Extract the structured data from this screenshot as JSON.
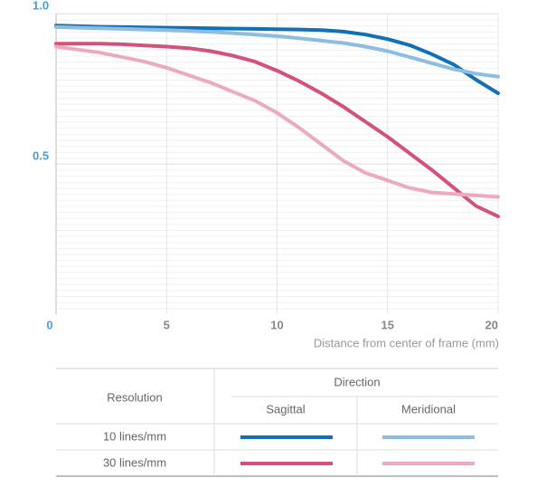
{
  "chart_data": {
    "type": "line",
    "x_label": "Distance from center of frame (mm)",
    "x": [
      0,
      1,
      2,
      3,
      4,
      5,
      6,
      7,
      8,
      9,
      10,
      11,
      12,
      13,
      14,
      15,
      16,
      17,
      18,
      19,
      20
    ],
    "xlim": [
      0,
      20
    ],
    "xticks": [
      0,
      5,
      10,
      15,
      20
    ],
    "ylim": [
      0,
      1
    ],
    "yticks": [
      0.5,
      {
        "value": 1,
        "label": "1.0"
      }
    ],
    "grid": true,
    "series": [
      {
        "color": "#1470b5",
        "values": [
          0.96,
          0.958,
          0.956,
          0.955,
          0.954,
          0.953,
          0.952,
          0.951,
          0.95,
          0.949,
          0.948,
          0.947,
          0.945,
          0.94,
          0.93,
          0.915,
          0.895,
          0.865,
          0.83,
          0.78,
          0.735
        ]
      },
      {
        "color": "#8dbde0",
        "values": [
          0.955,
          0.953,
          0.951,
          0.949,
          0.947,
          0.945,
          0.942,
          0.939,
          0.935,
          0.93,
          0.925,
          0.918,
          0.91,
          0.902,
          0.89,
          0.875,
          0.855,
          0.835,
          0.815,
          0.8,
          0.79
        ]
      },
      {
        "color": "#d4527a",
        "values": [
          0.9,
          0.9,
          0.9,
          0.898,
          0.894,
          0.89,
          0.885,
          0.875,
          0.86,
          0.84,
          0.81,
          0.775,
          0.735,
          0.69,
          0.64,
          0.59,
          0.535,
          0.48,
          0.42,
          0.36,
          0.325
        ]
      },
      {
        "color": "#eeaabd",
        "values": [
          0.89,
          0.88,
          0.87,
          0.855,
          0.84,
          0.82,
          0.795,
          0.77,
          0.74,
          0.71,
          0.67,
          0.62,
          0.565,
          0.51,
          0.47,
          0.445,
          0.42,
          0.405,
          0.4,
          0.395,
          0.39
        ]
      }
    ],
    "legend_table": {
      "row_header": "Resolution",
      "column_header": "Direction",
      "columns": [
        "Sagittal",
        "Meridional"
      ],
      "rows": [
        "10 lines/mm",
        "30 lines/mm"
      ],
      "swatches": [
        [
          0,
          1
        ],
        [
          2,
          3
        ]
      ]
    }
  }
}
